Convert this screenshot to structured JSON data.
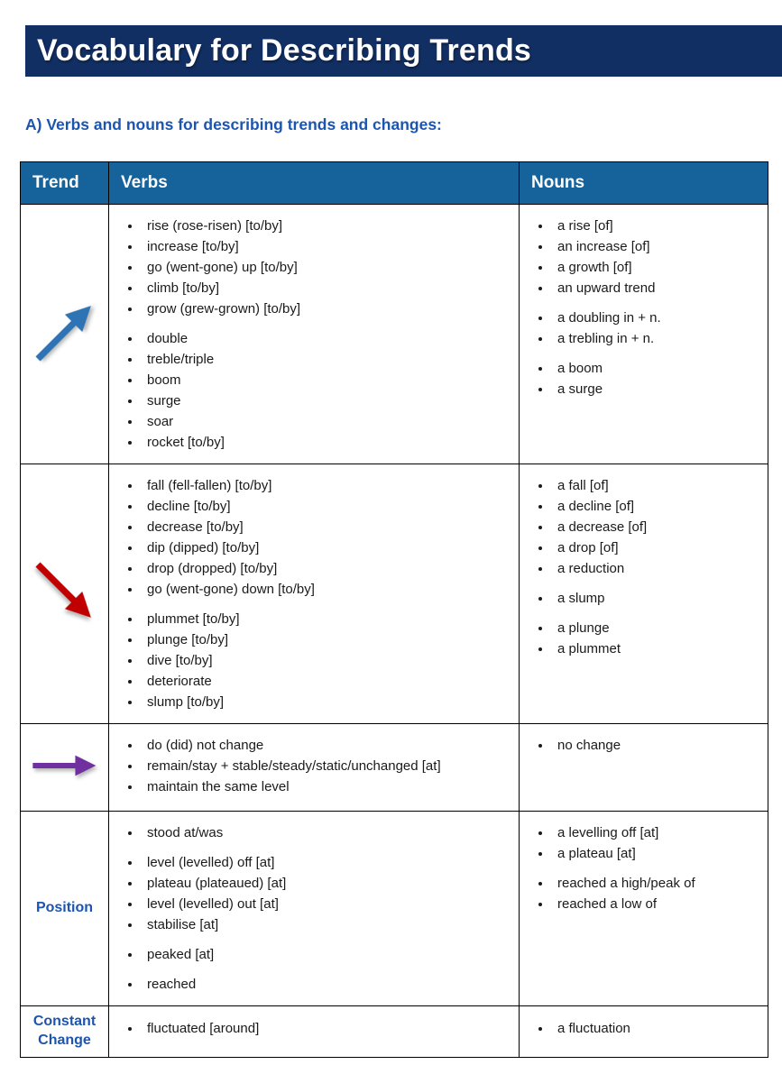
{
  "page": {
    "title": "Vocabulary for Describing Trends",
    "section_heading": "A) Verbs and nouns for describing trends and changes:"
  },
  "colors": {
    "banner_bg": "#122F63",
    "table_header_bg": "#16639C",
    "heading_text": "#1C55B0",
    "arrow_up": "#2E74B5",
    "arrow_down": "#C00000",
    "arrow_flat": "#7030A0"
  },
  "table": {
    "headers": [
      "Trend",
      "Verbs",
      "Nouns"
    ],
    "rows": [
      {
        "trend_icon": "arrow-up-right",
        "verbs": [
          [
            "rise (rose-risen) [to/by]",
            "increase [to/by]",
            "go (went-gone) up [to/by]",
            "climb [to/by]",
            "grow (grew-grown) [to/by]"
          ],
          [
            "double",
            "treble/triple",
            "boom",
            "surge",
            "soar",
            "rocket [to/by]"
          ]
        ],
        "nouns": [
          [
            "a rise [of]",
            "an increase [of]",
            "a growth [of]",
            "an upward trend"
          ],
          [
            "a doubling in + n.",
            "a trebling in + n."
          ],
          [
            "a boom",
            "a surge"
          ]
        ]
      },
      {
        "trend_icon": "arrow-down-right",
        "verbs": [
          [
            "fall (fell-fallen) [to/by]",
            "decline [to/by]",
            "decrease [to/by]",
            "dip (dipped) [to/by]",
            "drop (dropped) [to/by]",
            "go (went-gone) down [to/by]"
          ],
          [
            "plummet [to/by]",
            "plunge [to/by]",
            "dive [to/by]",
            "deteriorate",
            "slump [to/by]"
          ]
        ],
        "nouns": [
          [
            "a fall [of]",
            "a decline [of]",
            "a decrease [of]",
            "a drop [of]",
            "a reduction"
          ],
          [
            "a slump"
          ],
          [
            "a plunge",
            "a plummet"
          ]
        ]
      },
      {
        "trend_icon": "arrow-right",
        "verbs": [
          [
            "do (did) not change",
            "remain/stay + stable/steady/static/unchanged [at]",
            "maintain the same level"
          ]
        ],
        "nouns": [
          [
            "no change"
          ]
        ]
      },
      {
        "trend_label": "Position",
        "verbs": [
          [
            "stood at/was"
          ],
          [
            "level (levelled) off [at]",
            "plateau (plateaued) [at]",
            "level (levelled) out [at]",
            "stabilise [at]"
          ],
          [
            "peaked [at]"
          ],
          [
            "reached"
          ]
        ],
        "nouns": [
          [
            "a levelling off [at]",
            "a plateau [at]"
          ],
          [
            "reached a high/peak of",
            "reached a low of"
          ]
        ]
      },
      {
        "trend_label": "Constant Change",
        "verbs": [
          [
            "fluctuated [around]"
          ]
        ],
        "nouns": [
          [
            "a fluctuation"
          ]
        ]
      }
    ]
  }
}
